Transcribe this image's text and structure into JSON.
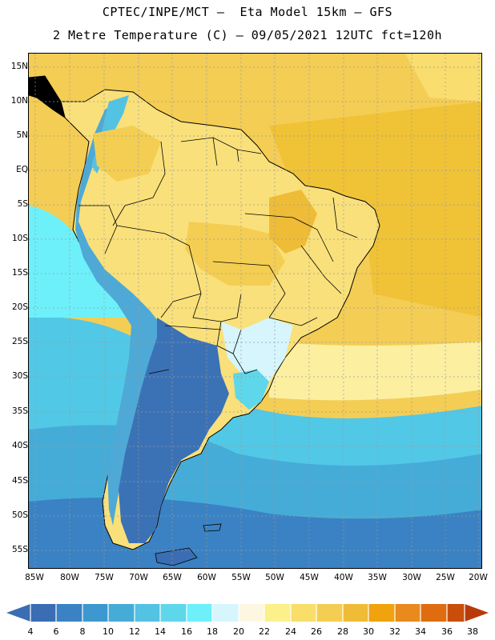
{
  "title_line1": "CPTEC/INPE/MCT –  Eta Model 15km – GFS",
  "title_line2": "2 Metre Temperature (C) – 09/05/2021 12UTC fct=120h",
  "lat_labels": [
    "15N",
    "10N",
    "5N",
    "EQ",
    "5S",
    "10S",
    "15S",
    "20S",
    "25S",
    "30S",
    "35S",
    "40S",
    "45S",
    "50S",
    "55S"
  ],
  "lon_labels": [
    "85W",
    "80W",
    "75W",
    "70W",
    "65W",
    "60W",
    "55W",
    "50W",
    "45W",
    "40W",
    "35W",
    "30W",
    "25W",
    "20W"
  ],
  "colorbar": {
    "labels": [
      "4",
      "6",
      "8",
      "10",
      "12",
      "14",
      "16",
      "18",
      "20",
      "22",
      "24",
      "26",
      "28",
      "30",
      "32",
      "34",
      "36",
      "38"
    ],
    "colors": [
      "#3a6db3",
      "#3a82c3",
      "#3c98cf",
      "#45acd8",
      "#54c2e3",
      "#5fd7ea",
      "#6ef0fb",
      "#d6f5fc",
      "#fdf7e2",
      "#fcf08a",
      "#f9de6a",
      "#f4ce52",
      "#efbc37",
      "#f0a30c",
      "#ea8a1e",
      "#e06c10",
      "#c84e0a",
      "#b83a0a"
    ]
  },
  "palette": {
    "ocean_warm": "#f4cd55",
    "ocean_hot": "#f0c235",
    "ocean_mild": "#f9dd6e",
    "land": "#f9e07a",
    "cold_sea": "#52c8e7",
    "andes": "#4ea9d6",
    "patagonia": "#3b72b6",
    "border": "#000000",
    "grid": "#9a9a9a"
  }
}
